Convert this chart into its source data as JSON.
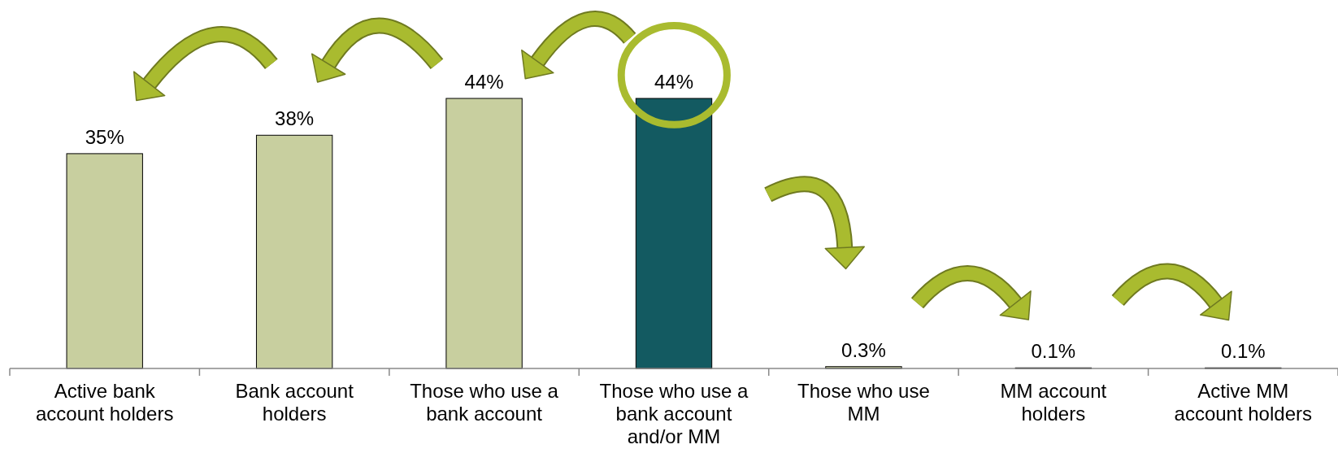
{
  "chart_data": {
    "type": "bar",
    "categories": [
      "Active bank account holders",
      "Bank account holders",
      "Those who use a bank account",
      "Those who use a bank account and/or MM",
      "Those who use MM",
      "MM account holders",
      "Active MM account holders"
    ],
    "values": [
      35,
      38,
      44,
      44,
      0.3,
      0.1,
      0.1
    ],
    "colors": [
      "#c8cf9f",
      "#c8cf9f",
      "#c8cf9f",
      "#135a61",
      "#c8cf9f",
      "#c8cf9f",
      "#c8cf9f"
    ],
    "value_labels": [
      "35%",
      "38%",
      "44%",
      "44%",
      "0.3%",
      "0.1%",
      "0.1%"
    ]
  }
}
